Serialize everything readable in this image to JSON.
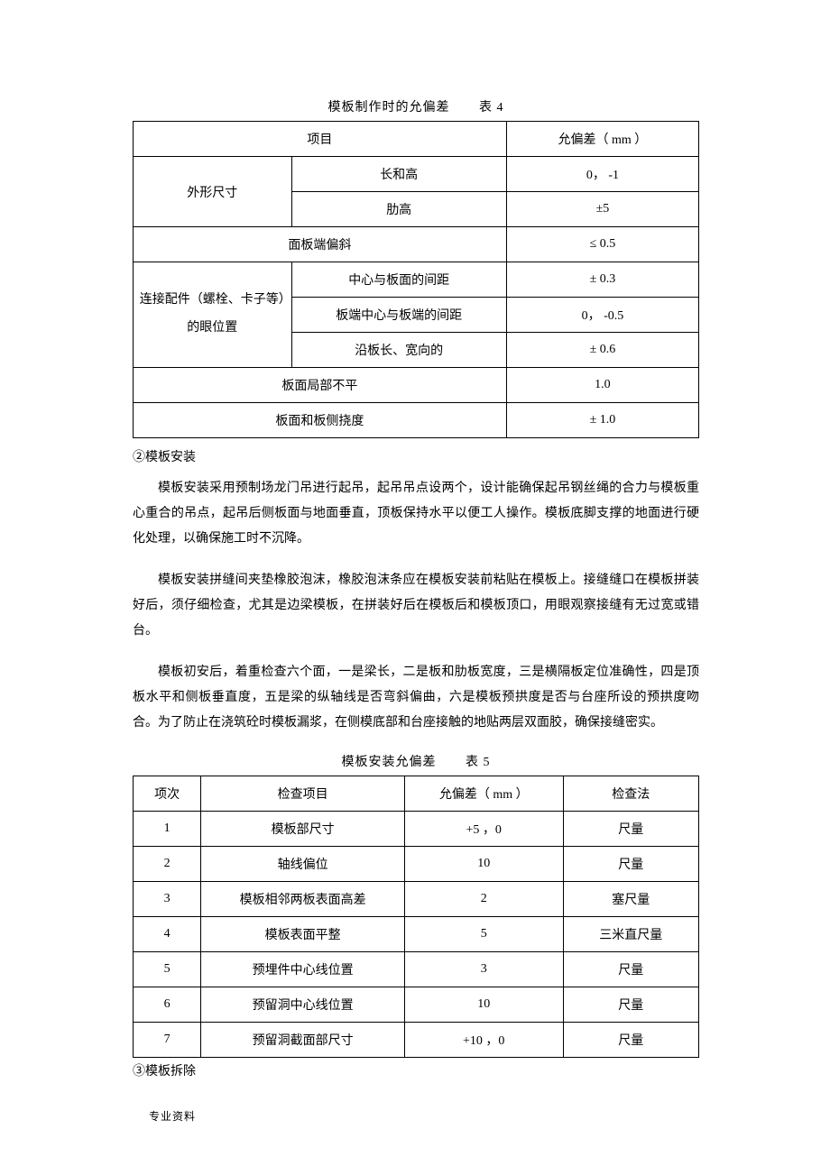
{
  "table1": {
    "title": "模板制作时的允偏差",
    "label": "表 4",
    "header": {
      "item": "项目",
      "tol": "允偏差（ mm ）"
    },
    "group1": {
      "label": "外形尺寸",
      "rows": [
        {
          "name": "长和高",
          "val": "0， -1"
        },
        {
          "name": "肋高",
          "val": "±5"
        }
      ]
    },
    "row_panel_tilt": {
      "name": "面板端偏斜",
      "val": "≤ 0.5"
    },
    "group2": {
      "label": "连接配件（螺栓、卡子等）的眼位置",
      "rows": [
        {
          "name": "中心与板面的间距",
          "val": "± 0.3"
        },
        {
          "name": "板端中心与板端的间距",
          "val": "0， -0.5"
        },
        {
          "name": "沿板长、宽向的",
          "val": "± 0.6"
        }
      ]
    },
    "row_local_uneven": {
      "name": "板面局部不平",
      "val": "1.0"
    },
    "row_deflection": {
      "name": "板面和板侧挠度",
      "val": "± 1.0"
    }
  },
  "section_install_head": "②模板安装",
  "para1": "模板安装采用预制场龙门吊进行起吊，起吊吊点设两个，设计能确保起吊钢丝绳的合力与模板重心重合的吊点，起吊后侧板面与地面垂直，顶板保持水平以便工人操作。模板底脚支撑的地面进行硬化处理，以确保施工时不沉降。",
  "para2": "模板安装拼缝间夹垫橡胶泡沫，橡胶泡沫条应在模板安装前粘贴在模板上。接缝缝口在模板拼装好后，须仔细检查，尤其是边梁模板，在拼装好后在模板后和模板顶口，用眼观察接缝有无过宽或错台。",
  "para3": "模板初安后，着重检查六个面，一是梁长，二是板和肋板宽度，三是横隔板定位准确性，四是顶板水平和侧板垂直度，五是梁的纵轴线是否弯斜偏曲，六是模板预拱度是否与台座所设的预拱度吻合。为了防止在浇筑砼时模板漏浆，在侧模底部和台座接触的地贴两层双面胶，确保接缝密实。",
  "table2": {
    "title": "模板安装允偏差",
    "label": "表 5",
    "header": {
      "no": "项次",
      "item": "检查项目",
      "tol": "允偏差（ mm ）",
      "method": "检查法"
    },
    "rows": [
      {
        "no": "1",
        "item": "模板部尺寸",
        "tol": "+5 ，0",
        "method": "尺量"
      },
      {
        "no": "2",
        "item": "轴线偏位",
        "tol": "10",
        "method": "尺量"
      },
      {
        "no": "3",
        "item": "模板相邻两板表面高差",
        "tol": "2",
        "method": "塞尺量"
      },
      {
        "no": "4",
        "item": "模板表面平整",
        "tol": "5",
        "method": "三米直尺量"
      },
      {
        "no": "5",
        "item": "预埋件中心线位置",
        "tol": "3",
        "method": "尺量"
      },
      {
        "no": "6",
        "item": "预留洞中心线位置",
        "tol": "10",
        "method": "尺量"
      },
      {
        "no": "7",
        "item": "预留洞截面部尺寸",
        "tol": "+10 ，0",
        "method": "尺量"
      }
    ]
  },
  "section_remove_head": "③模板拆除",
  "bottom_label": "专业资料"
}
